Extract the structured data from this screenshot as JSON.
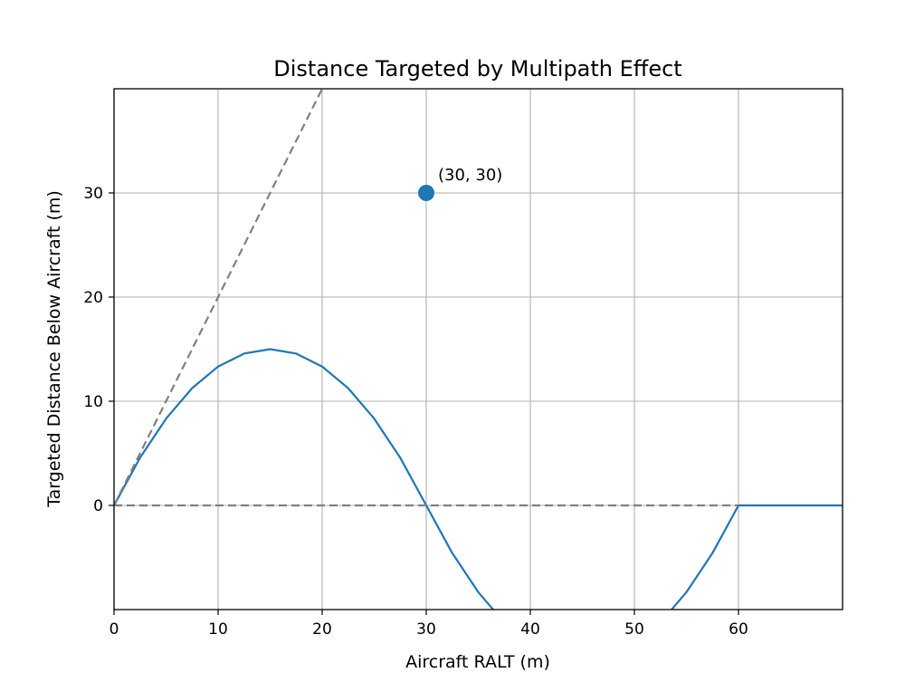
{
  "chart_data": {
    "type": "line",
    "title": "Distance Targeted by Multipath Effect",
    "xlabel": "Aircraft RALT (m)",
    "ylabel": "Targeted Distance Below Aircraft (m)",
    "xlim": [
      0,
      70
    ],
    "ylim": [
      -10,
      40
    ],
    "xticks": [
      0,
      10,
      20,
      30,
      40,
      50,
      60
    ],
    "yticks": [
      0,
      10,
      20,
      30
    ],
    "grid": true,
    "colors": {
      "series": "#1f77b4",
      "reference": "#808080",
      "grid": "#b0b0b0"
    },
    "series": [
      {
        "style": "solid",
        "x": [
          0,
          2.5,
          5,
          7.5,
          10,
          12.5,
          15,
          17.5,
          20,
          22.5,
          25,
          27.5,
          30,
          32.5,
          35,
          37.5,
          40,
          42.5,
          45,
          47.5,
          50,
          52.5,
          55,
          57.5,
          60,
          62.5,
          65,
          67.5,
          70
        ],
        "y": [
          0,
          4.58,
          8.33,
          11.25,
          13.33,
          14.58,
          15.0,
          14.58,
          13.33,
          11.25,
          8.33,
          4.58,
          0,
          -4.58,
          -8.33,
          -11.25,
          -13.33,
          -14.58,
          -15.0,
          -14.58,
          -13.33,
          -11.25,
          -8.33,
          -4.58,
          0,
          0,
          0,
          0,
          0
        ]
      },
      {
        "style": "dashed",
        "x": [
          0,
          20
        ],
        "y": [
          0,
          40
        ]
      },
      {
        "style": "dashed",
        "x": [
          0,
          60
        ],
        "y": [
          0,
          0
        ]
      }
    ],
    "marker": {
      "x": 30,
      "y": 30,
      "label": "(30, 30)"
    }
  }
}
